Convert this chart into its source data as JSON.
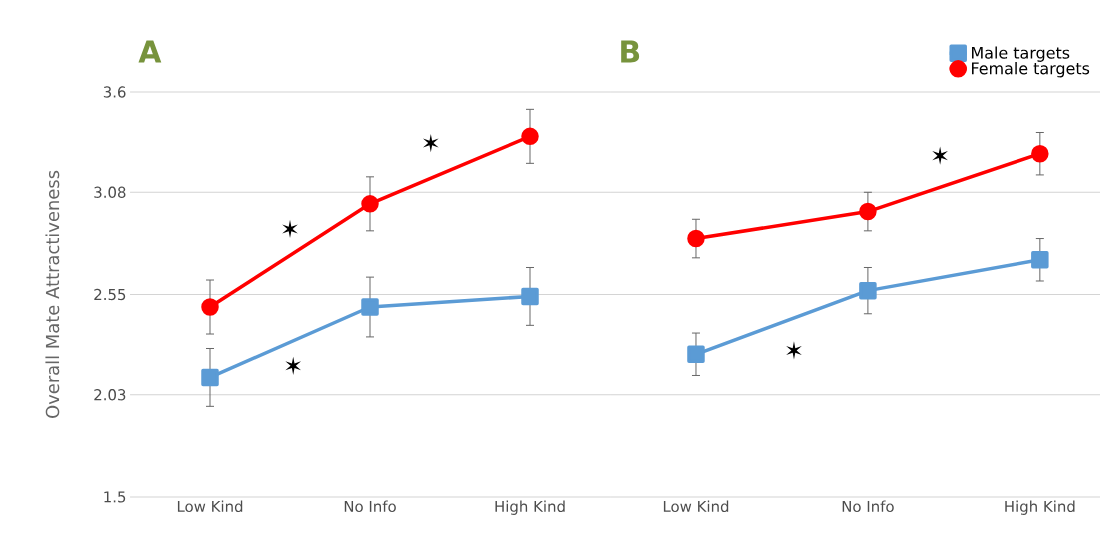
{
  "chart_data": [
    {
      "type": "line",
      "title": "A",
      "ylabel": "Overall Mate Attractiveness",
      "categories": [
        "Low Kind",
        "No Info",
        "High Kind"
      ],
      "ylim": [
        1.5,
        3.6
      ],
      "yticks": [
        1.5,
        2.03,
        2.55,
        3.08,
        3.6
      ],
      "grid": "y",
      "legend": false,
      "series": [
        {
          "color": "#5b9bd5",
          "marker": "square",
          "values": [
            2.12,
            2.485,
            2.54
          ],
          "errors": [
            0.15,
            0.155,
            0.15
          ]
        },
        {
          "color": "#ff0000",
          "marker": "circle",
          "values": [
            2.485,
            3.02,
            3.37
          ],
          "errors": [
            0.14,
            0.14,
            0.14
          ]
        }
      ],
      "annotations": [
        "✶",
        "✶",
        "✶"
      ]
    },
    {
      "type": "line",
      "title": "B",
      "categories": [
        "Low Kind",
        "No Info",
        "High Kind"
      ],
      "ylim": [
        1.5,
        3.6
      ],
      "yticks": [
        1.5,
        2.03,
        2.55,
        3.08,
        3.6
      ],
      "grid": "y",
      "tick_labels": "x",
      "legend": "top right",
      "series": [
        {
          "name": "Male targets",
          "color": "#5b9bd5",
          "marker": "square",
          "values": [
            2.24,
            2.57,
            2.73
          ],
          "errors": [
            0.11,
            0.12,
            0.11
          ]
        },
        {
          "name": "Female targets",
          "color": "#ff0000",
          "marker": "circle",
          "values": [
            2.84,
            2.98,
            3.28
          ],
          "errors": [
            0.1,
            0.1,
            0.11
          ]
        }
      ],
      "annotations": [
        "✶",
        "✶"
      ]
    }
  ]
}
